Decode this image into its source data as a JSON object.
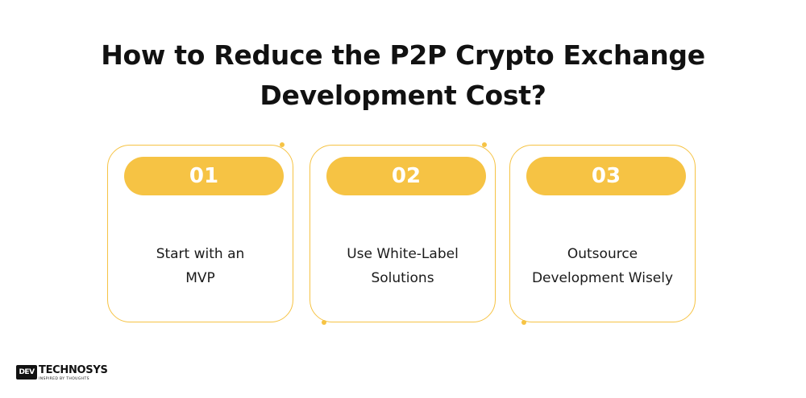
{
  "title_lines": [
    "How to Reduce the P2P Crypto Exchange",
    "Development Cost?"
  ],
  "cards": [
    {
      "number": "01",
      "lines": [
        "Start with an",
        "MVP"
      ]
    },
    {
      "number": "02",
      "lines": [
        "Use White-Label",
        "Solutions"
      ]
    },
    {
      "number": "03",
      "lines": [
        "Outsource",
        "Development Wisely"
      ]
    }
  ],
  "logo": {
    "mark": "DEV",
    "name": "TECHNOSYS",
    "tagline": "INSPIRED BY THOUGHTS"
  },
  "colors": {
    "accent": "#f6c344",
    "text": "#111111",
    "background": "#ffffff"
  }
}
